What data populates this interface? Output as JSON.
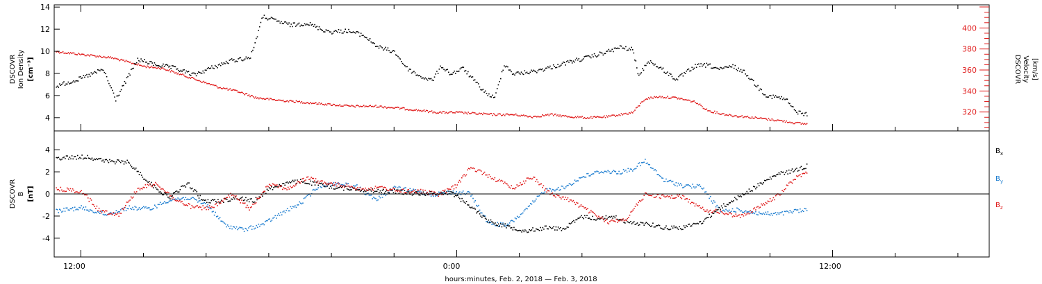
{
  "x_axis": {
    "label": "hours:minutes, Feb.  2, 2018 — Feb.  3, 2018",
    "tick_labels": [
      "12:00",
      "0:00",
      "12:00"
    ],
    "range_hours": [
      -12.85,
      17.0
    ],
    "labeled_ticks_hours": [
      -12,
      0,
      12
    ],
    "minor_tick_every_hours": 2
  },
  "colors": {
    "black": "#000000",
    "red": "#e01b1b",
    "blue": "#1e7ed0"
  },
  "chart_data": [
    {
      "type": "scatter",
      "panel": "top",
      "left_axis_label": [
        "DSCOVR",
        "Ion Density",
        "[cm⁻³]"
      ],
      "right_axis_label": [
        "DSCOVR",
        "Velocity",
        "[km/s]"
      ],
      "left_ylim": [
        2.8,
        14.2
      ],
      "left_ticks": [
        4,
        6,
        8,
        10,
        12,
        14
      ],
      "right_ylim": [
        302,
        422
      ],
      "right_ticks": [
        320,
        340,
        360,
        380,
        400
      ],
      "series": [
        {
          "axis": "left",
          "color": "#000000",
          "x": [
            -12.8,
            -12.0,
            -11.3,
            -10.9,
            -10.2,
            -9.7,
            -9.0,
            -8.4,
            -7.8,
            -7.2,
            -6.6,
            -6.2,
            -5.9,
            -5.3,
            -4.8,
            -4.3,
            -4.0,
            -3.5,
            -3.0,
            -2.5,
            -2.0,
            -1.6,
            -1.2,
            -0.8,
            -0.5,
            -0.2,
            0.2,
            0.6,
            0.9,
            1.2,
            1.5,
            1.8,
            2.4,
            3.0,
            3.6,
            4.2,
            4.8,
            5.2,
            5.6,
            5.8,
            6.1,
            6.5,
            7.0,
            7.6,
            8.0,
            8.4,
            8.8,
            9.2,
            9.6,
            9.9,
            10.2,
            10.5,
            10.8,
            11.1,
            11.2
          ],
          "y": [
            6.9,
            7.6,
            8.4,
            5.7,
            9.3,
            8.9,
            8.5,
            7.9,
            8.6,
            9.2,
            9.5,
            13.2,
            12.9,
            12.4,
            12.6,
            12.0,
            11.8,
            11.9,
            11.5,
            10.4,
            10.0,
            8.5,
            7.8,
            7.4,
            8.7,
            8.0,
            8.5,
            7.2,
            6.3,
            5.8,
            8.9,
            8.0,
            8.2,
            8.6,
            9.1,
            9.5,
            10.0,
            10.4,
            10.2,
            7.8,
            9.2,
            8.5,
            7.5,
            8.7,
            8.8,
            8.4,
            8.7,
            8.1,
            6.8,
            6.0,
            5.9,
            5.7,
            4.6,
            4.4,
            4.3
          ]
        },
        {
          "axis": "right",
          "color": "#e01b1b",
          "x": [
            -12.8,
            -12.2,
            -11.6,
            -11.0,
            -10.5,
            -10.0,
            -9.4,
            -8.8,
            -8.2,
            -7.6,
            -7.0,
            -6.4,
            -5.8,
            -5.0,
            -4.2,
            -3.4,
            -2.6,
            -1.8,
            -1.2,
            -0.6,
            0.0,
            0.6,
            1.2,
            1.8,
            2.4,
            3.0,
            3.6,
            4.2,
            4.8,
            5.2,
            5.6,
            6.0,
            6.4,
            7.0,
            7.6,
            8.0,
            8.4,
            8.8,
            9.2,
            9.8,
            10.4,
            10.8,
            11.2
          ],
          "y": [
            378,
            376,
            374,
            372,
            368,
            364,
            362,
            356,
            350,
            344,
            340,
            334,
            332,
            330,
            328,
            326,
            326,
            324,
            322,
            320,
            320,
            319,
            318,
            318,
            316,
            318,
            316,
            315,
            316,
            318,
            320,
            333,
            335,
            334,
            330,
            322,
            319,
            317,
            316,
            314,
            312,
            310,
            309
          ]
        }
      ]
    },
    {
      "type": "scatter",
      "panel": "bottom",
      "left_axis_label": [
        "DSCOVR",
        "B",
        "[nT]"
      ],
      "ylim": [
        -5.7,
        5.7
      ],
      "ticks": [
        -4,
        -2,
        0,
        2,
        4
      ],
      "zero_line": true,
      "legend_placement": "right",
      "series": [
        {
          "legend": "B",
          "legend_sub": "x",
          "color": "#000000",
          "x": [
            -12.8,
            -11.8,
            -11.2,
            -10.5,
            -9.8,
            -9.2,
            -8.6,
            -8.1,
            -7.6,
            -7.0,
            -6.5,
            -6.0,
            -5.5,
            -5.0,
            -4.4,
            -3.8,
            -3.2,
            -2.6,
            -2.0,
            -1.4,
            -0.8,
            -0.2,
            0.4,
            1.0,
            1.6,
            2.2,
            2.8,
            3.4,
            4.0,
            4.5,
            5.0,
            5.5,
            6.0,
            6.6,
            7.2,
            7.8,
            8.4,
            9.0,
            9.6,
            10.2,
            10.8,
            11.2
          ],
          "y": [
            3.3,
            3.4,
            3.0,
            2.9,
            1.0,
            -0.3,
            1.0,
            -0.6,
            -0.6,
            -0.3,
            -0.6,
            0.5,
            1.0,
            1.2,
            0.9,
            0.6,
            0.5,
            0.3,
            0.3,
            0.1,
            0.1,
            0.2,
            -1.0,
            -2.4,
            -2.9,
            -3.3,
            -3.0,
            -3.1,
            -2.0,
            -2.2,
            -2.0,
            -2.6,
            -2.6,
            -3.0,
            -3.0,
            -2.5,
            -1.2,
            -0.2,
            0.8,
            1.8,
            2.2,
            2.6
          ]
        },
        {
          "legend": "B",
          "legend_sub": "y",
          "color": "#1e7ed0",
          "x": [
            -12.8,
            -12.0,
            -11.2,
            -10.5,
            -9.8,
            -9.2,
            -8.6,
            -8.0,
            -7.4,
            -6.8,
            -6.2,
            -5.6,
            -5.0,
            -4.4,
            -3.8,
            -3.2,
            -2.6,
            -2.0,
            -1.4,
            -0.8,
            -0.2,
            0.4,
            1.0,
            1.6,
            2.2,
            2.8,
            3.4,
            4.0,
            4.6,
            5.2,
            5.6,
            6.0,
            6.6,
            7.2,
            7.8,
            8.4,
            9.0,
            9.6,
            10.2,
            10.8,
            11.2
          ],
          "y": [
            -1.5,
            -1.2,
            -1.8,
            -1.2,
            -1.3,
            -0.5,
            -0.3,
            -0.9,
            -2.8,
            -3.2,
            -2.7,
            -1.7,
            -0.8,
            0.8,
            1.0,
            0.7,
            -0.5,
            0.6,
            0.3,
            0.0,
            0.2,
            0.1,
            -2.6,
            -2.8,
            -1.4,
            0.4,
            0.6,
            1.6,
            2.1,
            2.0,
            2.3,
            3.0,
            1.3,
            0.8,
            0.7,
            -1.5,
            -1.4,
            -1.7,
            -1.8,
            -1.5,
            -1.4
          ]
        },
        {
          "legend": "B",
          "legend_sub": "z",
          "color": "#e01b1b",
          "x": [
            -12.8,
            -12.0,
            -11.4,
            -10.8,
            -10.2,
            -9.6,
            -9.0,
            -8.4,
            -7.8,
            -7.2,
            -6.6,
            -6.0,
            -5.4,
            -4.8,
            -4.2,
            -3.6,
            -3.0,
            -2.4,
            -1.8,
            -1.2,
            -0.6,
            0.0,
            0.4,
            0.8,
            1.2,
            1.8,
            2.4,
            3.0,
            3.6,
            4.2,
            4.8,
            5.4,
            6.0,
            6.6,
            7.2,
            7.8,
            8.4,
            9.0,
            9.6,
            10.2,
            10.8,
            11.2
          ],
          "y": [
            0.5,
            0.3,
            -1.5,
            -1.8,
            0.5,
            1.0,
            -0.5,
            -1.2,
            -1.2,
            0.0,
            -1.3,
            1.0,
            0.5,
            1.5,
            1.0,
            0.8,
            0.5,
            0.6,
            0.3,
            0.3,
            0.0,
            0.8,
            2.4,
            2.0,
            1.4,
            0.6,
            1.6,
            0.0,
            -0.5,
            -1.5,
            -2.5,
            -2.2,
            0.0,
            -0.2,
            -0.2,
            -1.3,
            -1.6,
            -2.0,
            -1.2,
            -0.2,
            1.5,
            2.0
          ]
        }
      ]
    }
  ]
}
